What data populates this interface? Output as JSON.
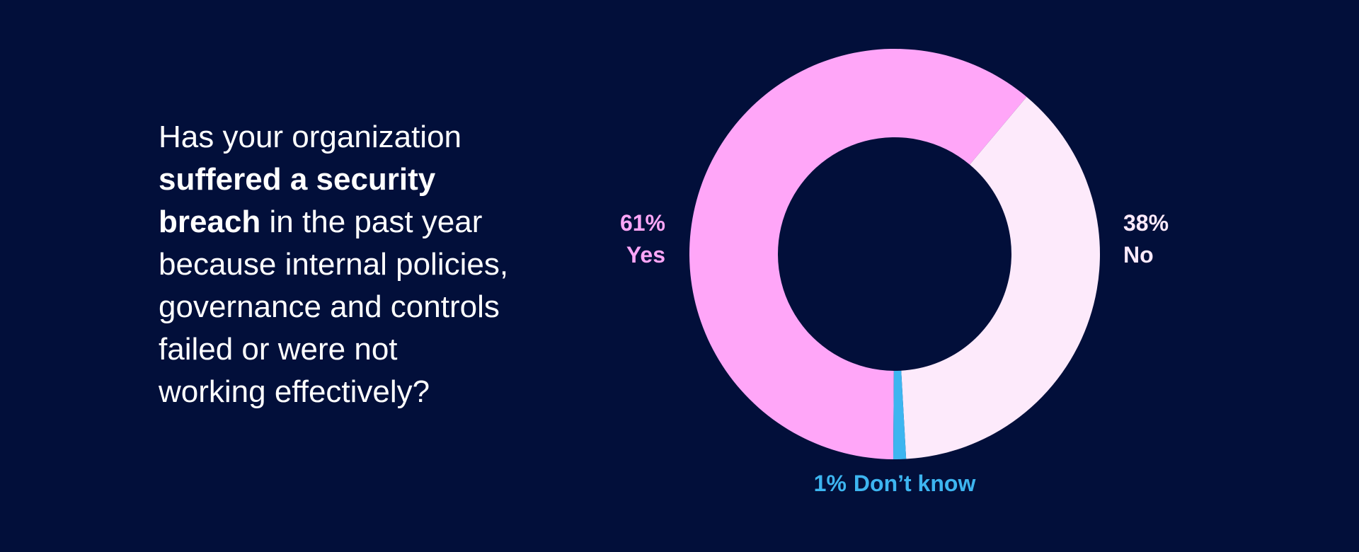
{
  "chart_data": {
    "type": "donut",
    "title": [
      [
        {
          "text": "Has your organization",
          "bold": false
        }
      ],
      [
        {
          "text": "suffered a security",
          "bold": true
        }
      ],
      [
        {
          "text": "breach",
          "bold": true
        },
        {
          "text": " in the past year",
          "bold": false
        }
      ],
      [
        {
          "text": "because internal policies,",
          "bold": false
        }
      ],
      [
        {
          "text": "governance and controls",
          "bold": false
        }
      ],
      [
        {
          "text": "failed or were not",
          "bold": false
        }
      ],
      [
        {
          "text": "working effectively?",
          "bold": false
        }
      ]
    ],
    "categories": [
      "Yes",
      "No",
      "Don’t know"
    ],
    "values": [
      61,
      38,
      1
    ],
    "value_labels": [
      "61%",
      "38%",
      "1%"
    ],
    "colors": [
      "#ffa6f8",
      "#fdeafb",
      "#3db5f0"
    ]
  }
}
